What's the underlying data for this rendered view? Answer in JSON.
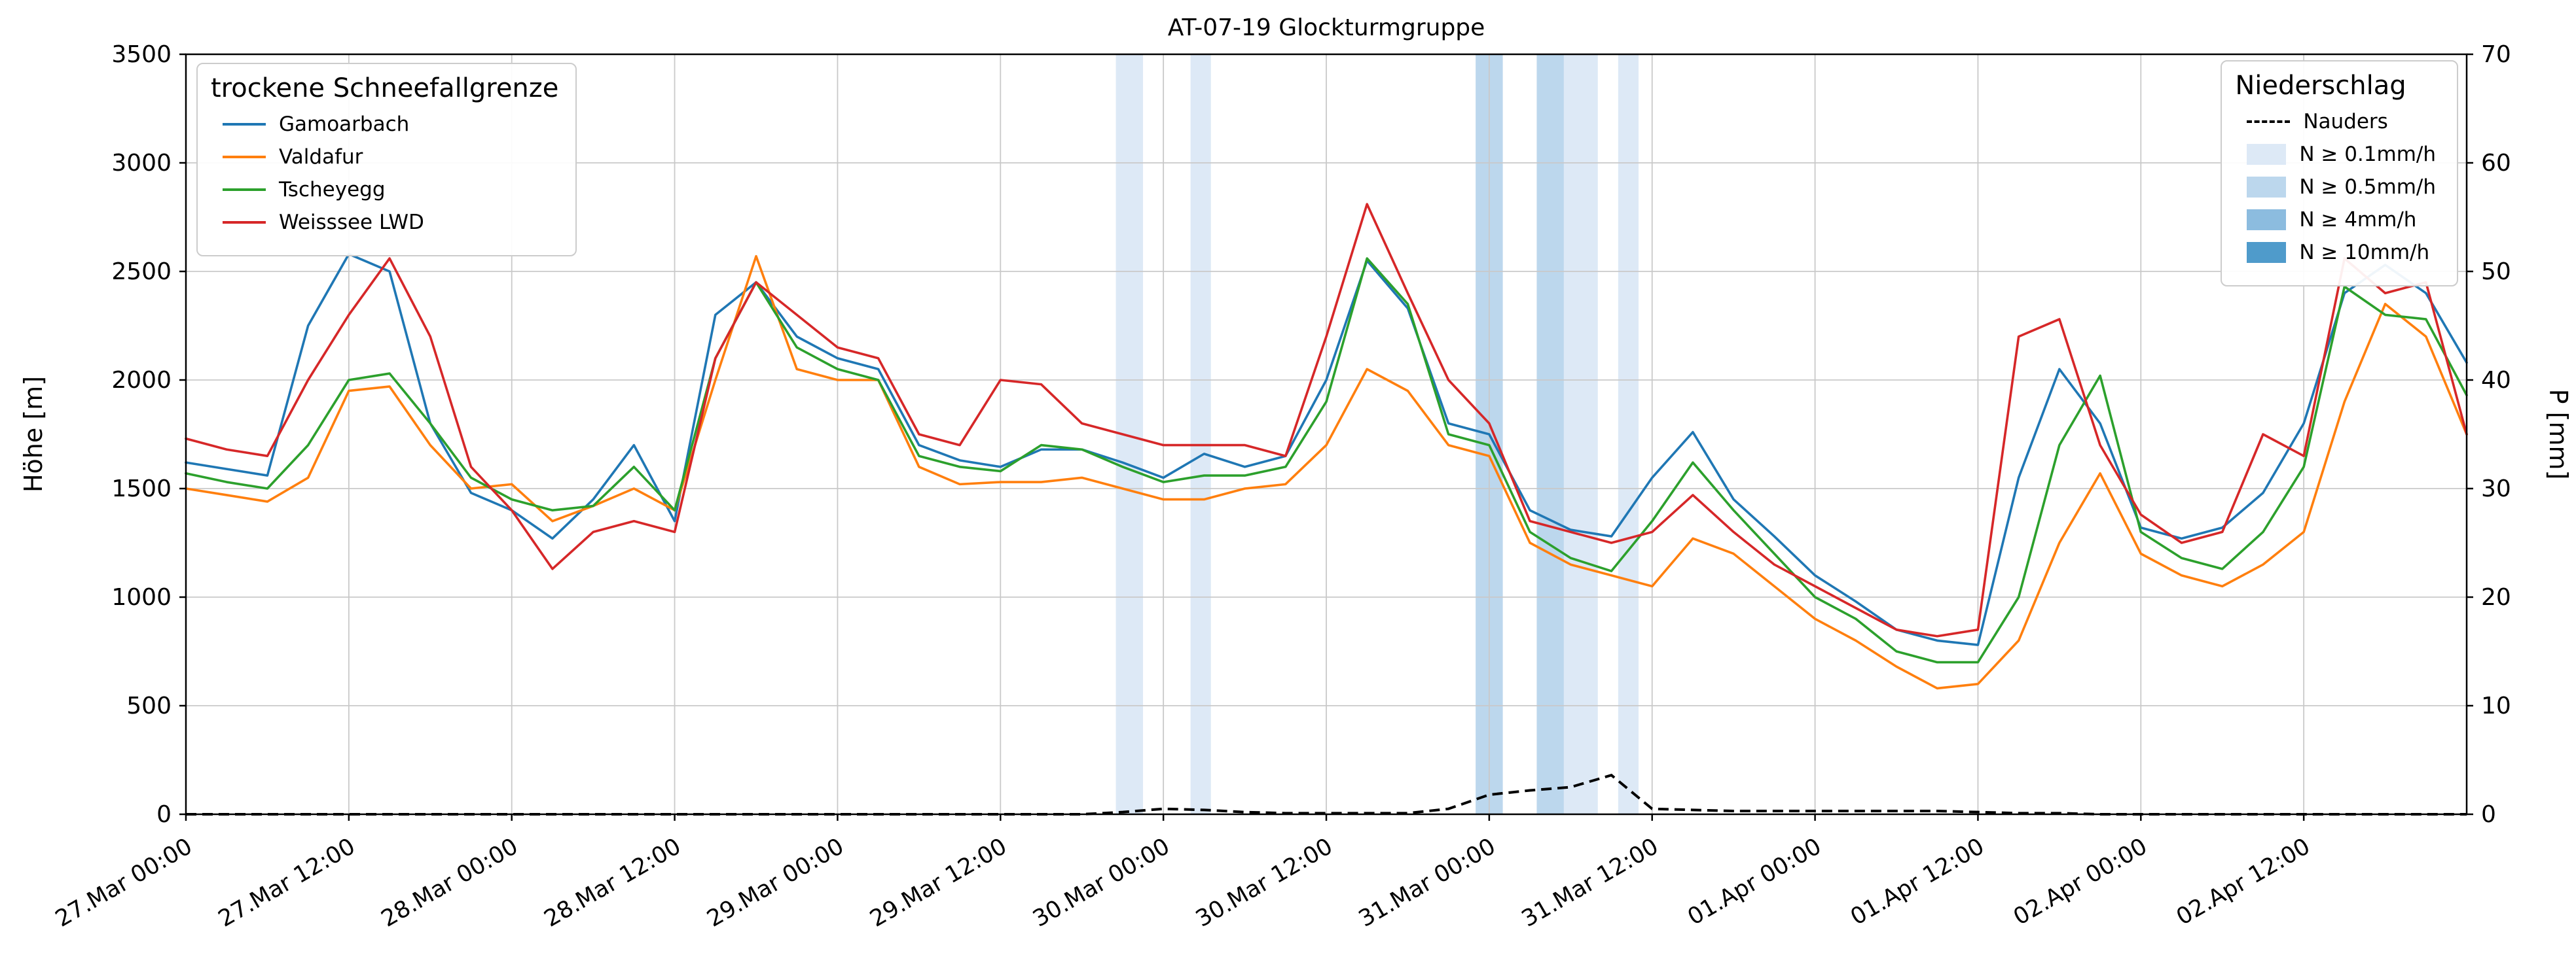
{
  "title": "AT-07-19 Glockturmgruppe",
  "axes": {
    "y_left_label": "Höhe [m]",
    "y_right_label": "P [mm]"
  },
  "legend_left": {
    "title": "trockene Schneefallgrenze"
  },
  "legend_right": {
    "title": "Niederschlag",
    "line_item": "Nauders",
    "items": [
      "N ≥ 0.1mm/h",
      "N ≥ 0.5mm/h",
      "N ≥ 4mm/h",
      "N ≥ 10mm/h"
    ]
  },
  "chart_data": {
    "type": "line",
    "title": "AT-07-19 Glockturmgruppe",
    "x_unit": "hours since 27.Mar 00:00",
    "x_range": [
      0,
      168
    ],
    "grid": true,
    "y_left": {
      "label": "Höhe [m]",
      "range": [
        0,
        3500
      ],
      "ticks": [
        0,
        500,
        1000,
        1500,
        2000,
        2500,
        3000,
        3500
      ]
    },
    "y_right": {
      "label": "P [mm]",
      "range": [
        0,
        70
      ],
      "ticks": [
        0,
        10,
        20,
        30,
        40,
        50,
        60,
        70
      ]
    },
    "x_ticks": [
      {
        "t": 0,
        "label": "27.Mar 00:00"
      },
      {
        "t": 12,
        "label": "27.Mar 12:00"
      },
      {
        "t": 24,
        "label": "28.Mar 00:00"
      },
      {
        "t": 36,
        "label": "28.Mar 12:00"
      },
      {
        "t": 48,
        "label": "29.Mar 00:00"
      },
      {
        "t": 60,
        "label": "29.Mar 12:00"
      },
      {
        "t": 72,
        "label": "30.Mar 00:00"
      },
      {
        "t": 84,
        "label": "30.Mar 12:00"
      },
      {
        "t": 96,
        "label": "31.Mar 00:00"
      },
      {
        "t": 108,
        "label": "31.Mar 12:00"
      },
      {
        "t": 120,
        "label": "01.Apr 00:00"
      },
      {
        "t": 132,
        "label": "01.Apr 12:00"
      },
      {
        "t": 144,
        "label": "02.Apr 00:00"
      },
      {
        "t": 156,
        "label": "02.Apr 12:00"
      }
    ],
    "t_hours": [
      0,
      3,
      6,
      9,
      12,
      15,
      18,
      21,
      24,
      27,
      30,
      33,
      36,
      39,
      42,
      45,
      48,
      51,
      54,
      57,
      60,
      63,
      66,
      69,
      72,
      75,
      78,
      81,
      84,
      87,
      90,
      93,
      96,
      99,
      102,
      105,
      108,
      111,
      114,
      117,
      120,
      123,
      126,
      129,
      132,
      135,
      138,
      141,
      144,
      147,
      150,
      153,
      156,
      159,
      162,
      165,
      168
    ],
    "series": [
      {
        "name": "Gamoarbach",
        "color": "#1f77b4",
        "values": [
          1620,
          1590,
          1560,
          2250,
          2580,
          2500,
          1800,
          1480,
          1400,
          1270,
          1450,
          1700,
          1350,
          2300,
          2450,
          2200,
          2100,
          2050,
          1700,
          1630,
          1600,
          1680,
          1680,
          1620,
          1550,
          1660,
          1600,
          1650,
          2000,
          2550,
          2330,
          1800,
          1750,
          1400,
          1310,
          1280,
          1550,
          1760,
          1450,
          1280,
          1100,
          980,
          850,
          800,
          780,
          1550,
          2050,
          1800,
          1320,
          1270,
          1320,
          1480,
          1800,
          2400,
          2530,
          2400,
          2080
        ]
      },
      {
        "name": "Valdafur",
        "color": "#ff7f0e",
        "values": [
          1500,
          1470,
          1440,
          1550,
          1950,
          1970,
          1700,
          1500,
          1520,
          1350,
          1420,
          1500,
          1400,
          2000,
          2570,
          2050,
          2000,
          2000,
          1600,
          1520,
          1530,
          1530,
          1550,
          1500,
          1450,
          1450,
          1500,
          1520,
          1700,
          2050,
          1950,
          1700,
          1650,
          1250,
          1150,
          1100,
          1050,
          1270,
          1200,
          1050,
          900,
          800,
          680,
          580,
          600,
          800,
          1250,
          1570,
          1200,
          1100,
          1050,
          1150,
          1300,
          1900,
          2350,
          2200,
          1750
        ]
      },
      {
        "name": "Tscheyegg",
        "color": "#2ca02c",
        "values": [
          1570,
          1530,
          1500,
          1700,
          2000,
          2030,
          1800,
          1550,
          1450,
          1400,
          1420,
          1600,
          1400,
          2100,
          2450,
          2150,
          2050,
          2000,
          1650,
          1600,
          1580,
          1700,
          1680,
          1600,
          1530,
          1560,
          1560,
          1600,
          1900,
          2560,
          2350,
          1750,
          1700,
          1300,
          1180,
          1120,
          1350,
          1620,
          1400,
          1200,
          1000,
          900,
          750,
          700,
          700,
          1000,
          1700,
          2020,
          1300,
          1180,
          1130,
          1300,
          1600,
          2430,
          2300,
          2280,
          1930
        ]
      },
      {
        "name": "Weisssee LWD",
        "color": "#d62728",
        "values": [
          1730,
          1680,
          1650,
          2000,
          2300,
          2560,
          2200,
          1600,
          1400,
          1130,
          1300,
          1350,
          1300,
          2100,
          2450,
          2300,
          2150,
          2100,
          1750,
          1700,
          2000,
          1980,
          1800,
          1750,
          1700,
          1700,
          1700,
          1650,
          2200,
          2810,
          2400,
          2000,
          1800,
          1350,
          1300,
          1250,
          1300,
          1470,
          1300,
          1150,
          1050,
          950,
          850,
          820,
          850,
          2200,
          2280,
          1700,
          1380,
          1250,
          1300,
          1750,
          1650,
          2560,
          2400,
          2450,
          1750
        ]
      }
    ],
    "precip_line": {
      "name": "Nauders",
      "color": "#000000",
      "dashed": true,
      "axis": "right",
      "unit": "mm",
      "values": [
        0,
        0,
        0,
        0,
        0,
        0,
        0,
        0,
        0,
        0,
        0,
        0,
        0,
        0,
        0,
        0,
        0,
        0,
        0,
        0,
        0,
        0,
        0,
        0.2,
        0.5,
        0.4,
        0.2,
        0.1,
        0.1,
        0.1,
        0.1,
        0.5,
        1.8,
        2.2,
        2.5,
        3.6,
        0.5,
        0.4,
        0.3,
        0.3,
        0.3,
        0.3,
        0.3,
        0.3,
        0.2,
        0.1,
        0.1,
        0,
        0,
        0,
        0,
        0,
        0,
        0,
        0,
        0,
        0
      ]
    },
    "precip_bands": [
      {
        "start": 68.5,
        "end": 70.5,
        "level": 1
      },
      {
        "start": 74,
        "end": 75.5,
        "level": 1
      },
      {
        "start": 95,
        "end": 97,
        "level": 2
      },
      {
        "start": 99.5,
        "end": 101.5,
        "level": 2
      },
      {
        "start": 101.5,
        "end": 104,
        "level": 1
      },
      {
        "start": 105.5,
        "end": 107,
        "level": 1
      }
    ],
    "band_colors": {
      "1": "#dde9f6",
      "2": "#bcd7ed",
      "3": "#8cbcdf",
      "4": "#4f9bcb"
    },
    "band_levels_legend": [
      "N ≥ 0.1mm/h",
      "N ≥ 0.5mm/h",
      "N ≥ 4mm/h",
      "N ≥ 10mm/h"
    ]
  }
}
